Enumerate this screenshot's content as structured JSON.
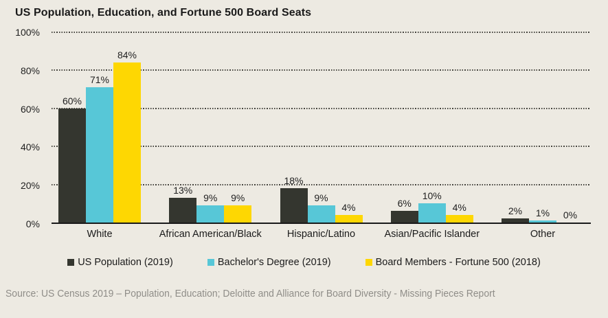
{
  "title": "US Population, Education, and Fortune 500 Board Seats",
  "source": "Source: US Census 2019 – Population, Education; Deloitte and Alliance for Board Diversity - Missing Pieces Report",
  "colors": {
    "background": "#edeae2",
    "axis": "#191919",
    "grid": "#45443e",
    "text": "#1f1f1f",
    "source_text": "#8f8d88"
  },
  "chart_data": {
    "type": "bar",
    "title": "US Population, Education, and Fortune 500 Board Seats",
    "categories": [
      "White",
      "African American/Black",
      "Hispanic/Latino",
      "Asian/Pacific Islander",
      "Other"
    ],
    "series": [
      {
        "name": "US Population (2019)",
        "color": "#34362f",
        "values": [
          60,
          13,
          18,
          6,
          2
        ]
      },
      {
        "name": "Bachelor's Degree (2019)",
        "color": "#57c7d7",
        "values": [
          71,
          9,
          9,
          10,
          1
        ]
      },
      {
        "name": "Board Members - Fortune 500 (2018)",
        "color": "#fed702",
        "values": [
          84,
          9,
          4,
          4,
          0
        ]
      }
    ],
    "xlabel": "",
    "ylabel": "",
    "ylim": [
      0,
      100
    ],
    "yticks": [
      0,
      20,
      40,
      60,
      80,
      100
    ],
    "ytick_labels": [
      "0%",
      "20%",
      "40%",
      "60%",
      "80%",
      "100%"
    ],
    "grid": true,
    "gridline_values": [
      20,
      40,
      60,
      80,
      100
    ],
    "value_label_suffix": "%",
    "legend_position": "bottom"
  }
}
